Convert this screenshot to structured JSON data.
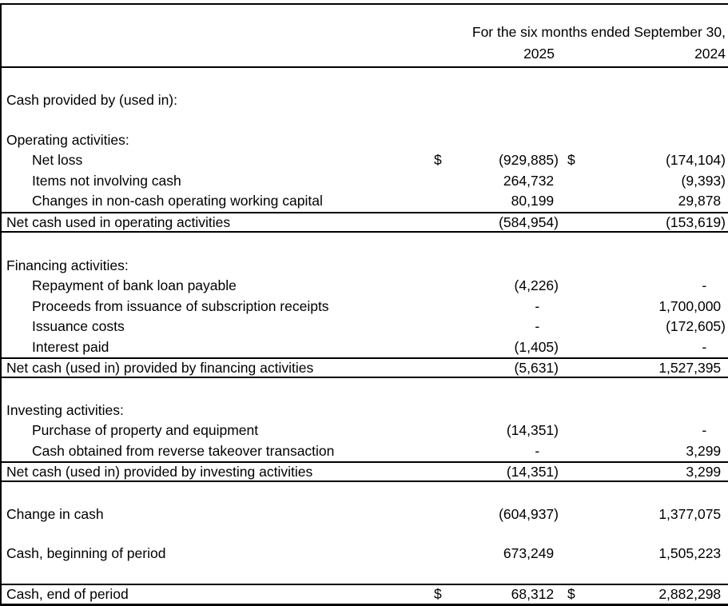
{
  "header": {
    "period_label": "For the six months ended September 30,",
    "year_2025": "2025",
    "year_2024": "2024"
  },
  "rows": [
    {
      "label": "Cash provided by (used in):",
      "indent": 0,
      "dollar_2025": "",
      "value_2025": "",
      "dollar_2024": "",
      "value_2024": "",
      "style": "plain",
      "gap": 28
    },
    {
      "label": "Operating activities:",
      "indent": 0,
      "dollar_2025": "",
      "value_2025": "",
      "dollar_2024": "",
      "value_2024": "",
      "style": "plain",
      "gap": 24.6
    },
    {
      "label": "Net loss",
      "indent": 1,
      "dollar_2025": "$",
      "value_2025": "(929,885)",
      "dollar_2024": "$",
      "value_2024": "(174,104)",
      "style": "plain",
      "gap": 0
    },
    {
      "label": "Items not involving cash",
      "indent": 1,
      "dollar_2025": "",
      "value_2025": "264,732",
      "dollar_2024": "",
      "value_2024": "(9,393)",
      "style": "plain",
      "gap": 0
    },
    {
      "label": "Changes in non-cash operating working capital",
      "indent": 1,
      "dollar_2025": "",
      "value_2025": "80,199",
      "dollar_2024": "",
      "value_2024": "29,878",
      "style": "plain",
      "gap": 0
    },
    {
      "label": "Net cash used in operating activities",
      "indent": 0,
      "dollar_2025": "",
      "value_2025": "(584,954)",
      "dollar_2024": "",
      "value_2024": "(153,619)",
      "style": "total",
      "gap": 0
    },
    {
      "label": "Financing activities:",
      "indent": 0,
      "dollar_2025": "",
      "value_2025": "",
      "dollar_2024": "",
      "value_2024": "",
      "style": "plain",
      "gap": 29.4
    },
    {
      "label": "Repayment of bank loan payable",
      "indent": 1,
      "dollar_2025": "",
      "value_2025": "(4,226)",
      "dollar_2024": "",
      "value_2024": "-",
      "style": "plain",
      "gap": 0
    },
    {
      "label": "Proceeds from issuance of subscription receipts",
      "indent": 1,
      "dollar_2025": "",
      "value_2025": "-",
      "dollar_2024": "",
      "value_2024": "1,700,000",
      "style": "plain",
      "gap": 0
    },
    {
      "label": "Issuance costs",
      "indent": 1,
      "dollar_2025": "",
      "value_2025": "-",
      "dollar_2024": "",
      "value_2024": "(172,605)",
      "style": "plain",
      "gap": 0
    },
    {
      "label": "Interest paid",
      "indent": 1,
      "dollar_2025": "",
      "value_2025": "(1,405)",
      "dollar_2024": "",
      "value_2024": "-",
      "style": "plain",
      "gap": 0
    },
    {
      "label": "Net cash (used in) provided by financing activities",
      "indent": 0,
      "dollar_2025": "",
      "value_2025": "(5,631)",
      "dollar_2024": "",
      "value_2024": "1,527,395",
      "style": "total",
      "gap": 0
    },
    {
      "label": "Investing activities:",
      "indent": 0,
      "dollar_2025": "",
      "value_2025": "",
      "dollar_2024": "",
      "value_2024": "",
      "style": "plain",
      "gap": 28
    },
    {
      "label": "Purchase of property and equipment",
      "indent": 1,
      "dollar_2025": "",
      "value_2025": "(14,351)",
      "dollar_2024": "",
      "value_2024": "-",
      "style": "plain",
      "gap": 0
    },
    {
      "label": "Cash obtained from reverse takeover transaction",
      "indent": 1,
      "dollar_2025": "",
      "value_2025": "-",
      "dollar_2024": "",
      "value_2024": "3,299",
      "style": "plain",
      "gap": 0
    },
    {
      "label": "Net cash (used in) provided by investing activities",
      "indent": 0,
      "dollar_2025": "",
      "value_2025": "(14,351)",
      "dollar_2024": "",
      "value_2024": "3,299",
      "style": "total",
      "gap": 0
    },
    {
      "label": "Change in cash",
      "indent": 0,
      "dollar_2025": "",
      "value_2025": "(604,937)",
      "dollar_2024": "",
      "value_2024": "1,377,075",
      "style": "plain",
      "gap": 28
    },
    {
      "label": "Cash, beginning of period",
      "indent": 0,
      "dollar_2025": "",
      "value_2025": "673,249",
      "dollar_2024": "",
      "value_2024": "1,505,223",
      "style": "plain",
      "gap": 24
    },
    {
      "label": "Cash, end of period",
      "indent": 0,
      "dollar_2025": "$",
      "value_2025": "68,312",
      "dollar_2024": "$",
      "value_2024": "2,882,298",
      "style": "grand",
      "gap": 24
    }
  ]
}
